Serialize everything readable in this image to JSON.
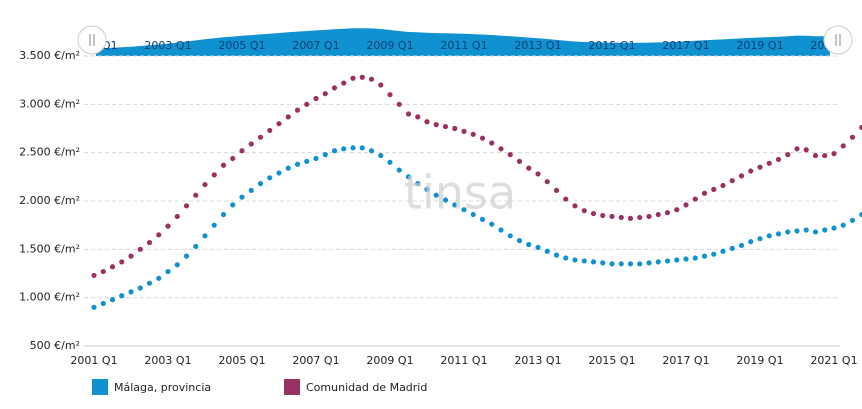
{
  "chart_data": {
    "type": "scatter-line",
    "watermark": "tinsa",
    "categories": [
      "2001 Q1",
      null,
      null,
      null,
      null,
      null,
      null,
      null,
      "2003 Q1",
      null,
      null,
      null,
      null,
      null,
      null,
      null,
      "2005 Q1",
      null,
      null,
      null,
      null,
      null,
      null,
      null,
      "2007 Q1",
      null,
      null,
      null,
      null,
      null,
      null,
      null,
      "2009 Q1",
      null,
      null,
      null,
      null,
      null,
      null,
      null,
      "2011 Q1",
      null,
      null,
      null,
      null,
      null,
      null,
      null,
      "2013 Q1",
      null,
      null,
      null,
      null,
      null,
      null,
      null,
      "2015 Q1",
      null,
      null,
      null,
      null,
      null,
      null,
      null,
      "2017 Q1",
      null,
      null,
      null,
      null,
      null,
      null,
      null,
      "2019 Q1",
      null,
      null,
      null,
      null,
      null,
      null,
      null,
      "2021 Q1",
      null,
      null,
      null
    ],
    "series": [
      {
        "name": "Málaga, provincia",
        "color": "#1192d0",
        "values": [
          900,
          940,
          980,
          1020,
          1060,
          1100,
          1150,
          1200,
          1270,
          1340,
          1430,
          1530,
          1640,
          1750,
          1860,
          1960,
          2040,
          2110,
          2180,
          2240,
          2290,
          2340,
          2380,
          2410,
          2440,
          2480,
          2520,
          2540,
          2550,
          2550,
          2520,
          2470,
          2400,
          2320,
          2250,
          2180,
          2120,
          2060,
          2010,
          1960,
          1910,
          1860,
          1810,
          1760,
          1700,
          1640,
          1590,
          1550,
          1520,
          1480,
          1440,
          1410,
          1390,
          1380,
          1370,
          1360,
          1350,
          1350,
          1350,
          1350,
          1360,
          1370,
          1380,
          1390,
          1400,
          1410,
          1430,
          1450,
          1480,
          1510,
          1540,
          1580,
          1610,
          1640,
          1660,
          1680,
          1690,
          1700,
          1680,
          1700,
          1720,
          1750,
          1800,
          1860
        ]
      },
      {
        "name": "Comunidad de Madrid",
        "color": "#9b3162",
        "values": [
          1230,
          1270,
          1320,
          1370,
          1430,
          1500,
          1570,
          1650,
          1740,
          1840,
          1950,
          2060,
          2170,
          2270,
          2370,
          2440,
          2520,
          2590,
          2660,
          2730,
          2800,
          2870,
          2940,
          3000,
          3060,
          3110,
          3170,
          3220,
          3270,
          3280,
          3260,
          3200,
          3100,
          3000,
          2900,
          2870,
          2820,
          2790,
          2770,
          2750,
          2720,
          2690,
          2650,
          2600,
          2540,
          2480,
          2410,
          2340,
          2280,
          2200,
          2110,
          2020,
          1950,
          1900,
          1870,
          1850,
          1840,
          1830,
          1820,
          1830,
          1840,
          1860,
          1880,
          1910,
          1960,
          2020,
          2080,
          2120,
          2160,
          2210,
          2260,
          2310,
          2350,
          2390,
          2430,
          2480,
          2540,
          2530,
          2470,
          2470,
          2490,
          2570,
          2660,
          2760
        ]
      }
    ],
    "ylim": [
      500,
      3500
    ],
    "yticks": [
      {
        "value": 500,
        "label": "500 €/m²"
      },
      {
        "value": 1000,
        "label": "1.000 €/m²"
      },
      {
        "value": 1500,
        "label": "1.500 €/m²"
      },
      {
        "value": 2000,
        "label": "2.000 €/m²"
      },
      {
        "value": 2500,
        "label": "2.500 €/m²"
      },
      {
        "value": 3000,
        "label": "3.000 €/m²"
      },
      {
        "value": 3500,
        "label": "3.500 €/m²"
      }
    ],
    "grid": true
  }
}
